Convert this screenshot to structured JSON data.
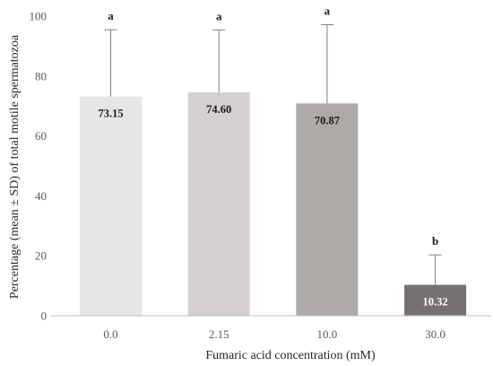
{
  "chart_data": {
    "type": "bar",
    "categories": [
      "0.0",
      "2.15",
      "10.0",
      "30.0"
    ],
    "values": [
      73.15,
      74.6,
      70.87,
      10.32
    ],
    "value_labels": [
      "73.15",
      "74.60",
      "70.87",
      "10.32"
    ],
    "error_upper": [
      22.3,
      20.8,
      26.3,
      10.0
    ],
    "significance": [
      "a",
      "a",
      "a",
      "b"
    ],
    "bar_colors": [
      "#e6e6e6",
      "#d4d0d0",
      "#aeaaa7",
      "#767171"
    ],
    "label_colors": [
      "#1a1a1a",
      "#1a1a1a",
      "#1a1a1a",
      "#ffffff"
    ],
    "xlabel": "Fumaric acid concentration (mM)",
    "ylabel": "Percentage (mean ± SD) of total motile spermatozoa",
    "ylim": [
      0,
      100
    ],
    "yticks": [
      0,
      20,
      40,
      60,
      80,
      100
    ],
    "grid": false,
    "legend": "none"
  }
}
